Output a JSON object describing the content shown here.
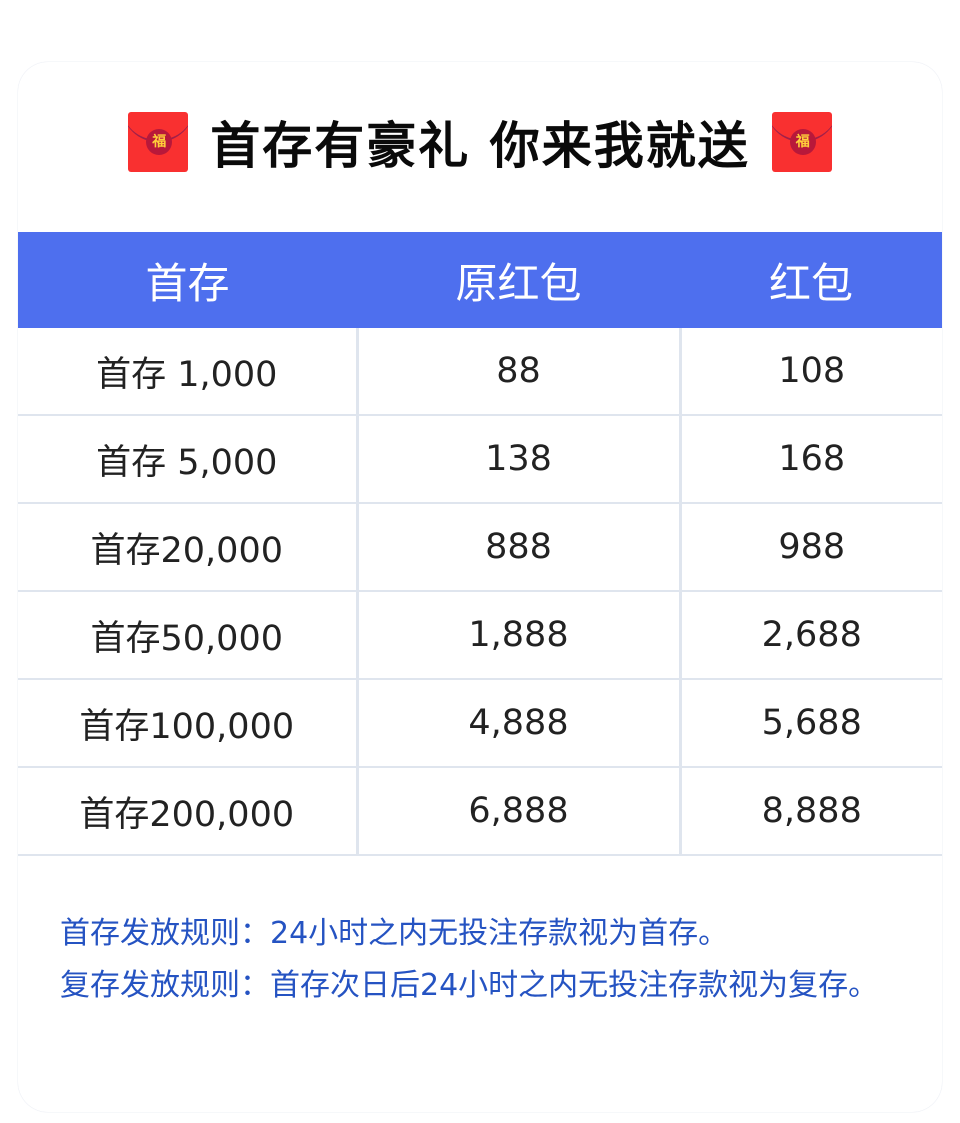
{
  "title": {
    "text": "首存有豪礼 你来我就送",
    "left_icon": "red-envelope-icon",
    "right_icon": "red-envelope-icon",
    "icon_glyph": "福"
  },
  "table": {
    "headers": [
      "首存",
      "原红包",
      "红包"
    ],
    "rows": [
      [
        "首存 1,000",
        "88",
        "108"
      ],
      [
        "首存 5,000",
        "138",
        "168"
      ],
      [
        "首存20,000",
        "888",
        "988"
      ],
      [
        "首存50,000",
        "1,888",
        "2,688"
      ],
      [
        "首存100,000",
        "4,888",
        "5,688"
      ],
      [
        "首存200,000",
        "6,888",
        "8,888"
      ]
    ]
  },
  "rules": [
    "首存发放规则：24小时之内无投注存款视为首存。",
    "复存发放规则：首存次日后24小时之内无投注存款视为复存。"
  ],
  "colors": {
    "header": "#4e6fee",
    "rules_text": "#2553c2",
    "envelope": "#f93030"
  }
}
